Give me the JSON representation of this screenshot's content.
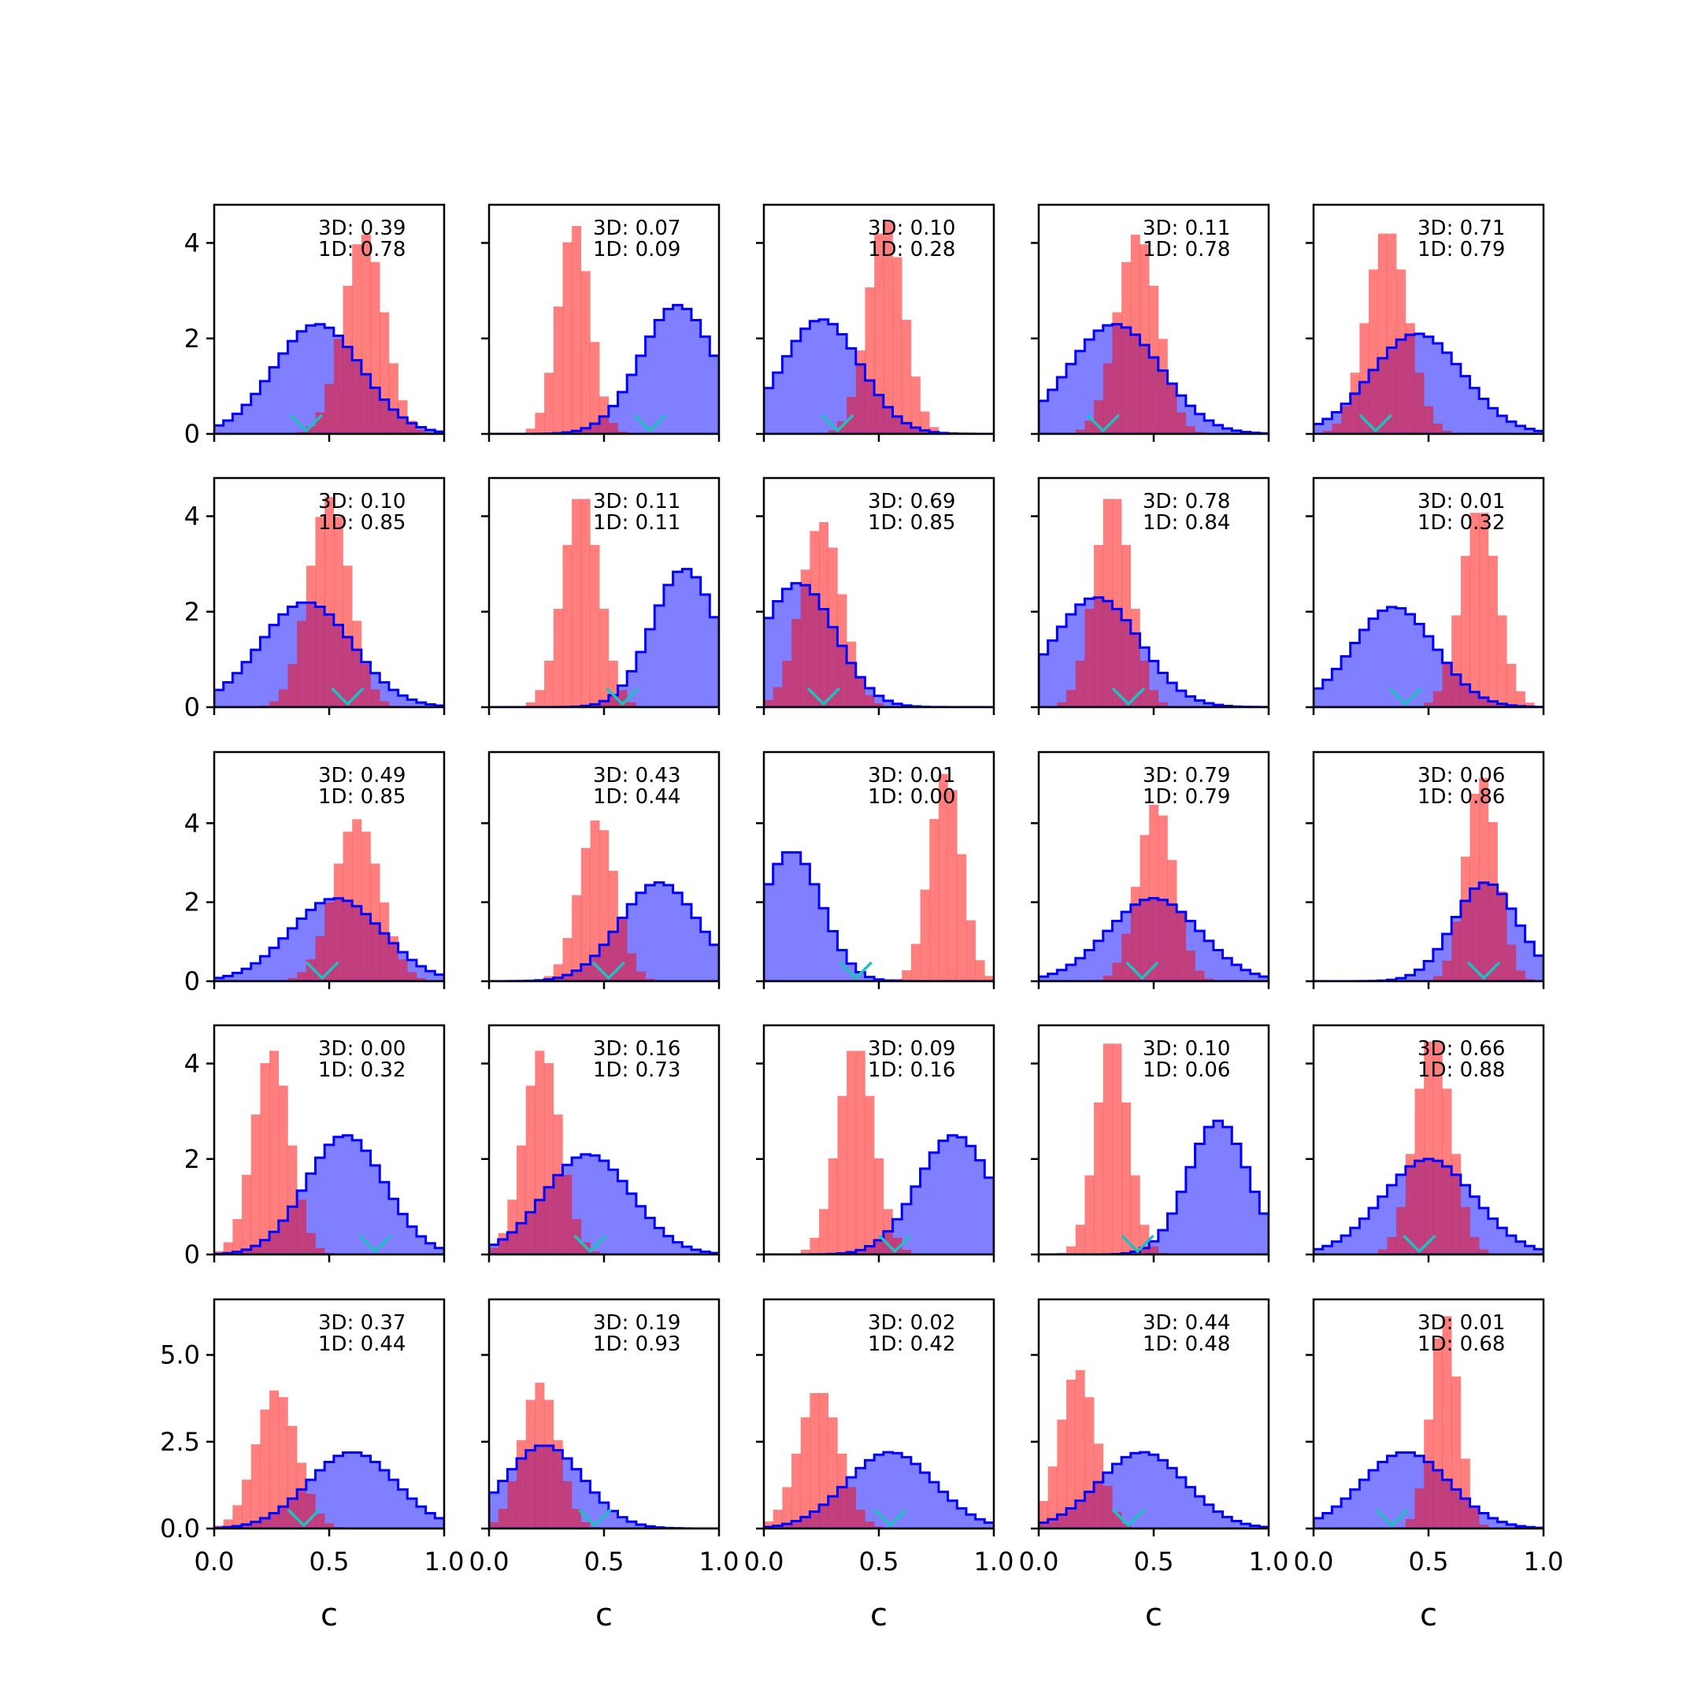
{
  "figure": {
    "xlabel": "c",
    "xticks": [
      "0.0",
      "0.5",
      "1.0"
    ],
    "yticks_rows_0_3": [
      "0",
      "2",
      "4"
    ],
    "yticks_row_4": [
      "0.0",
      "2.5",
      "5.0"
    ],
    "colors": {
      "blue": "#0000ff",
      "red": "#ff0000",
      "marker": "#20c0c0"
    }
  },
  "chart_data": [
    {
      "type": "bar",
      "row": 0,
      "col": 0,
      "ann3d": "3D: 0.39",
      "ann1d": "1D: 0.78",
      "blue_mean": 0.45,
      "blue_sd": 0.19,
      "blue_peak": 2.3,
      "red_mean": 0.65,
      "red_sd": 0.09,
      "red_peak": 4.2,
      "marker_x": 0.4,
      "ylim": [
        0,
        4.8
      ],
      "xlim": [
        0,
        1
      ]
    },
    {
      "type": "bar",
      "row": 0,
      "col": 1,
      "ann3d": "3D: 0.07",
      "ann1d": "1D: 0.09",
      "blue_mean": 0.82,
      "blue_sd": 0.16,
      "blue_peak": 2.7,
      "red_mean": 0.37,
      "red_sd": 0.07,
      "red_peak": 4.4,
      "marker_x": 0.7,
      "ylim": [
        0,
        4.8
      ],
      "xlim": [
        0,
        1
      ]
    },
    {
      "type": "bar",
      "row": 0,
      "col": 2,
      "ann3d": "3D: 0.10",
      "ann1d": "1D: 0.28",
      "blue_mean": 0.25,
      "blue_sd": 0.17,
      "blue_peak": 2.4,
      "red_mean": 0.53,
      "red_sd": 0.08,
      "red_peak": 4.5,
      "marker_x": 0.32,
      "ylim": [
        0,
        4.8
      ],
      "xlim": [
        0,
        1
      ]
    },
    {
      "type": "bar",
      "row": 0,
      "col": 3,
      "ann3d": "3D: 0.11",
      "ann1d": "1D: 0.78",
      "blue_mean": 0.33,
      "blue_sd": 0.2,
      "blue_peak": 2.3,
      "red_mean": 0.43,
      "red_sd": 0.09,
      "red_peak": 4.2,
      "marker_x": 0.28,
      "ylim": [
        0,
        4.8
      ],
      "xlim": [
        0,
        1
      ]
    },
    {
      "type": "bar",
      "row": 0,
      "col": 4,
      "ann3d": "3D: 0.71",
      "ann1d": "1D: 0.79",
      "blue_mean": 0.45,
      "blue_sd": 0.2,
      "blue_peak": 2.1,
      "red_mean": 0.32,
      "red_sd": 0.09,
      "red_peak": 4.3,
      "marker_x": 0.27,
      "ylim": [
        0,
        4.8
      ],
      "xlim": [
        0,
        1
      ]
    },
    {
      "type": "bar",
      "row": 1,
      "col": 0,
      "ann3d": "3D: 0.10",
      "ann1d": "1D: 0.85",
      "blue_mean": 0.4,
      "blue_sd": 0.2,
      "blue_peak": 2.2,
      "red_mean": 0.5,
      "red_sd": 0.09,
      "red_peak": 4.4,
      "marker_x": 0.58,
      "ylim": [
        0,
        4.8
      ],
      "xlim": [
        0,
        1
      ]
    },
    {
      "type": "bar",
      "row": 1,
      "col": 1,
      "ann3d": "3D: 0.11",
      "ann1d": "1D: 0.11",
      "blue_mean": 0.85,
      "blue_sd": 0.14,
      "blue_peak": 2.9,
      "red_mean": 0.4,
      "red_sd": 0.08,
      "red_peak": 4.5,
      "marker_x": 0.58,
      "ylim": [
        0,
        4.8
      ],
      "xlim": [
        0,
        1
      ]
    },
    {
      "type": "bar",
      "row": 1,
      "col": 2,
      "ann3d": "3D: 0.69",
      "ann1d": "1D: 0.85",
      "blue_mean": 0.15,
      "blue_sd": 0.16,
      "blue_peak": 2.6,
      "red_mean": 0.25,
      "red_sd": 0.09,
      "red_peak": 3.9,
      "marker_x": 0.26,
      "ylim": [
        0,
        4.8
      ],
      "xlim": [
        0,
        1
      ]
    },
    {
      "type": "bar",
      "row": 1,
      "col": 3,
      "ann3d": "3D: 0.78",
      "ann1d": "1D: 0.84",
      "blue_mean": 0.25,
      "blue_sd": 0.19,
      "blue_peak": 2.3,
      "red_mean": 0.32,
      "red_sd": 0.08,
      "red_peak": 4.5,
      "marker_x": 0.39,
      "ylim": [
        0,
        4.8
      ],
      "xlim": [
        0,
        1
      ]
    },
    {
      "type": "bar",
      "row": 1,
      "col": 4,
      "ann3d": "3D: 0.01",
      "ann1d": "1D: 0.32",
      "blue_mean": 0.35,
      "blue_sd": 0.18,
      "blue_peak": 2.1,
      "red_mean": 0.72,
      "red_sd": 0.08,
      "red_peak": 4.2,
      "marker_x": 0.4,
      "ylim": [
        0,
        4.8
      ],
      "xlim": [
        0,
        1
      ]
    },
    {
      "type": "bar",
      "row": 2,
      "col": 0,
      "ann3d": "3D: 0.49",
      "ann1d": "1D: 0.85",
      "blue_mean": 0.53,
      "blue_sd": 0.2,
      "blue_peak": 2.1,
      "red_mean": 0.62,
      "red_sd": 0.1,
      "red_peak": 4.1,
      "marker_x": 0.47,
      "ylim": [
        0,
        5.8
      ],
      "xlim": [
        0,
        1
      ]
    },
    {
      "type": "bar",
      "row": 2,
      "col": 1,
      "ann3d": "3D: 0.43",
      "ann1d": "1D: 0.44",
      "blue_mean": 0.74,
      "blue_sd": 0.17,
      "blue_peak": 2.5,
      "red_mean": 0.47,
      "red_sd": 0.08,
      "red_peak": 4.1,
      "marker_x": 0.52,
      "ylim": [
        0,
        5.8
      ],
      "xlim": [
        0,
        1
      ]
    },
    {
      "type": "bar",
      "row": 2,
      "col": 2,
      "ann3d": "3D: 0.01",
      "ann1d": "1D: 0.00",
      "blue_mean": 0.12,
      "blue_sd": 0.13,
      "blue_peak": 3.3,
      "red_mean": 0.79,
      "red_sd": 0.07,
      "red_peak": 5.3,
      "marker_x": 0.4,
      "ylim": [
        0,
        5.8
      ],
      "xlim": [
        0,
        1
      ]
    },
    {
      "type": "bar",
      "row": 2,
      "col": 3,
      "ann3d": "3D: 0.79",
      "ann1d": "1D: 0.79",
      "blue_mean": 0.5,
      "blue_sd": 0.2,
      "blue_peak": 2.1,
      "red_mean": 0.51,
      "red_sd": 0.08,
      "red_peak": 4.5,
      "marker_x": 0.45,
      "ylim": [
        0,
        5.8
      ],
      "xlim": [
        0,
        1
      ]
    },
    {
      "type": "bar",
      "row": 2,
      "col": 4,
      "ann3d": "3D: 0.06",
      "ann1d": "1D: 0.86",
      "blue_mean": 0.75,
      "blue_sd": 0.14,
      "blue_peak": 2.5,
      "red_mean": 0.73,
      "red_sd": 0.07,
      "red_peak": 5.2,
      "marker_x": 0.74,
      "ylim": [
        0,
        5.8
      ],
      "xlim": [
        0,
        1
      ]
    },
    {
      "type": "bar",
      "row": 3,
      "col": 0,
      "ann3d": "3D: 0.00",
      "ann1d": "1D: 0.32",
      "blue_mean": 0.57,
      "blue_sd": 0.17,
      "blue_peak": 2.5,
      "red_mean": 0.25,
      "red_sd": 0.08,
      "red_peak": 4.3,
      "marker_x": 0.7,
      "ylim": [
        0,
        4.8
      ],
      "xlim": [
        0,
        1
      ]
    },
    {
      "type": "bar",
      "row": 3,
      "col": 1,
      "ann3d": "3D: 0.16",
      "ann1d": "1D: 0.73",
      "blue_mean": 0.43,
      "blue_sd": 0.19,
      "blue_peak": 2.1,
      "red_mean": 0.23,
      "red_sd": 0.08,
      "red_peak": 4.3,
      "marker_x": 0.44,
      "ylim": [
        0,
        4.8
      ],
      "xlim": [
        0,
        1
      ]
    },
    {
      "type": "bar",
      "row": 3,
      "col": 2,
      "ann3d": "3D: 0.09",
      "ann1d": "1D: 0.16",
      "blue_mean": 0.83,
      "blue_sd": 0.16,
      "blue_peak": 2.5,
      "red_mean": 0.4,
      "red_sd": 0.08,
      "red_peak": 4.4,
      "marker_x": 0.57,
      "ylim": [
        0,
        4.8
      ],
      "xlim": [
        0,
        1
      ]
    },
    {
      "type": "bar",
      "row": 3,
      "col": 3,
      "ann3d": "3D: 0.10",
      "ann1d": "1D: 0.06",
      "blue_mean": 0.78,
      "blue_sd": 0.13,
      "blue_peak": 2.8,
      "red_mean": 0.32,
      "red_sd": 0.07,
      "red_peak": 4.6,
      "marker_x": 0.43,
      "ylim": [
        0,
        4.8
      ],
      "xlim": [
        0,
        1
      ]
    },
    {
      "type": "bar",
      "row": 3,
      "col": 4,
      "ann3d": "3D: 0.66",
      "ann1d": "1D: 0.88",
      "blue_mean": 0.5,
      "blue_sd": 0.2,
      "blue_peak": 2.0,
      "red_mean": 0.52,
      "red_sd": 0.08,
      "red_peak": 4.6,
      "marker_x": 0.46,
      "ylim": [
        0,
        4.8
      ],
      "xlim": [
        0,
        1
      ]
    },
    {
      "type": "bar",
      "row": 4,
      "col": 0,
      "ann3d": "3D: 0.37",
      "ann1d": "1D: 0.44",
      "blue_mean": 0.6,
      "blue_sd": 0.19,
      "blue_peak": 2.2,
      "red_mean": 0.27,
      "red_sd": 0.09,
      "red_peak": 4.0,
      "marker_x": 0.39,
      "ylim": [
        0,
        6.6
      ],
      "xlim": [
        0,
        1
      ]
    },
    {
      "type": "bar",
      "row": 4,
      "col": 1,
      "ann3d": "3D: 0.19",
      "ann1d": "1D: 0.93",
      "blue_mean": 0.24,
      "blue_sd": 0.17,
      "blue_peak": 2.4,
      "red_mean": 0.22,
      "red_sd": 0.08,
      "red_peak": 4.2,
      "marker_x": 0.46,
      "ylim": [
        0,
        6.6
      ],
      "xlim": [
        0,
        1
      ]
    },
    {
      "type": "bar",
      "row": 4,
      "col": 2,
      "ann3d": "3D: 0.02",
      "ann1d": "1D: 0.42",
      "blue_mean": 0.55,
      "blue_sd": 0.19,
      "blue_peak": 2.2,
      "red_mean": 0.24,
      "red_sd": 0.09,
      "red_peak": 4.0,
      "marker_x": 0.55,
      "ylim": [
        0,
        6.6
      ],
      "xlim": [
        0,
        1
      ]
    },
    {
      "type": "bar",
      "row": 4,
      "col": 3,
      "ann3d": "3D: 0.44",
      "ann1d": "1D: 0.48",
      "blue_mean": 0.45,
      "blue_sd": 0.19,
      "blue_peak": 2.2,
      "red_mean": 0.17,
      "red_sd": 0.08,
      "red_peak": 4.6,
      "marker_x": 0.39,
      "ylim": [
        0,
        6.6
      ],
      "xlim": [
        0,
        1
      ]
    },
    {
      "type": "bar",
      "row": 4,
      "col": 4,
      "ann3d": "3D: 0.01",
      "ann1d": "1D: 0.68",
      "blue_mean": 0.4,
      "blue_sd": 0.19,
      "blue_peak": 2.2,
      "red_mean": 0.57,
      "red_sd": 0.06,
      "red_peak": 6.2,
      "marker_x": 0.34,
      "ylim": [
        0,
        6.6
      ],
      "xlim": [
        0,
        1
      ]
    }
  ]
}
